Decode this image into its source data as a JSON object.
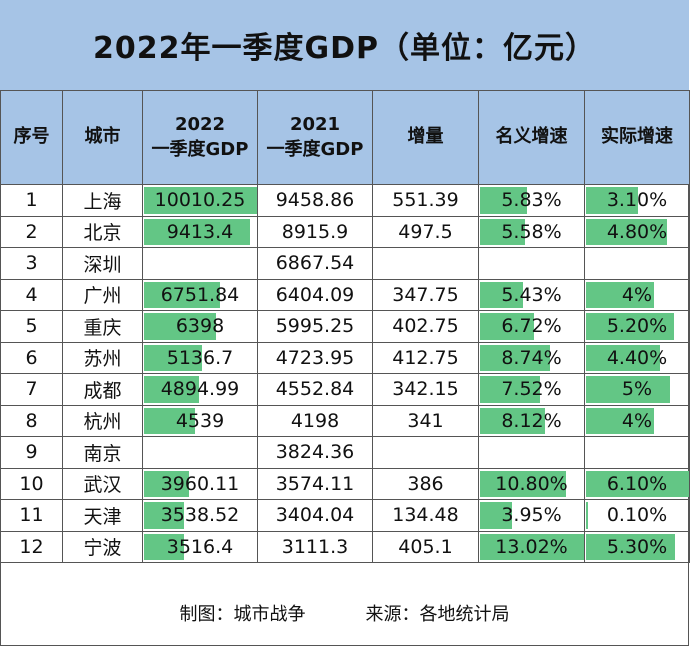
{
  "title": "2022年一季度GDP（单位：亿元）",
  "headers": {
    "rank": "序号",
    "city": "城市",
    "gdp2022_l1": "2022",
    "gdp2022_l2": "一季度GDP",
    "gdp2021_l1": "2021",
    "gdp2021_l2": "一季度GDP",
    "increase": "增量",
    "nominal": "名义增速",
    "real": "实际增速"
  },
  "bar_color": "#63c685",
  "header_color": "#a6c4e6",
  "rows": [
    {
      "rank": "1",
      "city": "上海",
      "gdp2022": "10010.25",
      "gdp2021": "9458.86",
      "increase": "551.39",
      "nominal": "5.83%",
      "real": "3.10%"
    },
    {
      "rank": "2",
      "city": "北京",
      "gdp2022": "9413.4",
      "gdp2021": "8915.9",
      "increase": "497.5",
      "nominal": "5.58%",
      "real": "4.80%"
    },
    {
      "rank": "3",
      "city": "深圳",
      "gdp2022": "",
      "gdp2021": "6867.54",
      "increase": "",
      "nominal": "",
      "real": ""
    },
    {
      "rank": "4",
      "city": "广州",
      "gdp2022": "6751.84",
      "gdp2021": "6404.09",
      "increase": "347.75",
      "nominal": "5.43%",
      "real": "4%"
    },
    {
      "rank": "5",
      "city": "重庆",
      "gdp2022": "6398",
      "gdp2021": "5995.25",
      "increase": "402.75",
      "nominal": "6.72%",
      "real": "5.20%"
    },
    {
      "rank": "6",
      "city": "苏州",
      "gdp2022": "5136.7",
      "gdp2021": "4723.95",
      "increase": "412.75",
      "nominal": "8.74%",
      "real": "4.40%"
    },
    {
      "rank": "7",
      "city": "成都",
      "gdp2022": "4894.99",
      "gdp2021": "4552.84",
      "increase": "342.15",
      "nominal": "7.52%",
      "real": "5%"
    },
    {
      "rank": "8",
      "city": "杭州",
      "gdp2022": "4539",
      "gdp2021": "4198",
      "increase": "341",
      "nominal": "8.12%",
      "real": "4%"
    },
    {
      "rank": "9",
      "city": "南京",
      "gdp2022": "",
      "gdp2021": "3824.36",
      "increase": "",
      "nominal": "",
      "real": ""
    },
    {
      "rank": "10",
      "city": "武汉",
      "gdp2022": "3960.11",
      "gdp2021": "3574.11",
      "increase": "386",
      "nominal": "10.80%",
      "real": "6.10%"
    },
    {
      "rank": "11",
      "city": "天津",
      "gdp2022": "3538.52",
      "gdp2021": "3404.04",
      "increase": "134.48",
      "nominal": "3.95%",
      "real": "0.10%"
    },
    {
      "rank": "12",
      "city": "宁波",
      "gdp2022": "3516.4",
      "gdp2021": "3111.3",
      "increase": "405.1",
      "nominal": "13.02%",
      "real": "5.30%"
    }
  ],
  "footer": {
    "maker": "制图：城市战争",
    "source": "来源：各地统计局"
  },
  "chart_data": {
    "type": "table",
    "title": "2022年一季度GDP（单位：亿元）",
    "columns": [
      "序号",
      "城市",
      "2022 一季度GDP",
      "2021 一季度GDP",
      "增量",
      "名义增速",
      "实际增速"
    ],
    "categories": [
      "上海",
      "北京",
      "深圳",
      "广州",
      "重庆",
      "苏州",
      "成都",
      "杭州",
      "南京",
      "武汉",
      "天津",
      "宁波"
    ],
    "series": [
      {
        "name": "2022 一季度GDP",
        "values": [
          10010.25,
          9413.4,
          null,
          6751.84,
          6398,
          5136.7,
          4894.99,
          4539,
          null,
          3960.11,
          3538.52,
          3516.4
        ]
      },
      {
        "name": "2021 一季度GDP",
        "values": [
          9458.86,
          8915.9,
          6867.54,
          6404.09,
          5995.25,
          4723.95,
          4552.84,
          4198,
          3824.36,
          3574.11,
          3404.04,
          3111.3
        ]
      },
      {
        "name": "增量",
        "values": [
          551.39,
          497.5,
          null,
          347.75,
          402.75,
          412.75,
          342.15,
          341,
          null,
          386,
          134.48,
          405.1
        ]
      },
      {
        "name": "名义增速",
        "values": [
          5.83,
          5.58,
          null,
          5.43,
          6.72,
          8.74,
          7.52,
          8.12,
          null,
          10.8,
          3.95,
          13.02
        ]
      },
      {
        "name": "实际增速",
        "values": [
          3.1,
          4.8,
          null,
          4,
          5.2,
          4.4,
          5,
          4,
          null,
          6.1,
          0.1,
          5.3
        ]
      }
    ]
  }
}
